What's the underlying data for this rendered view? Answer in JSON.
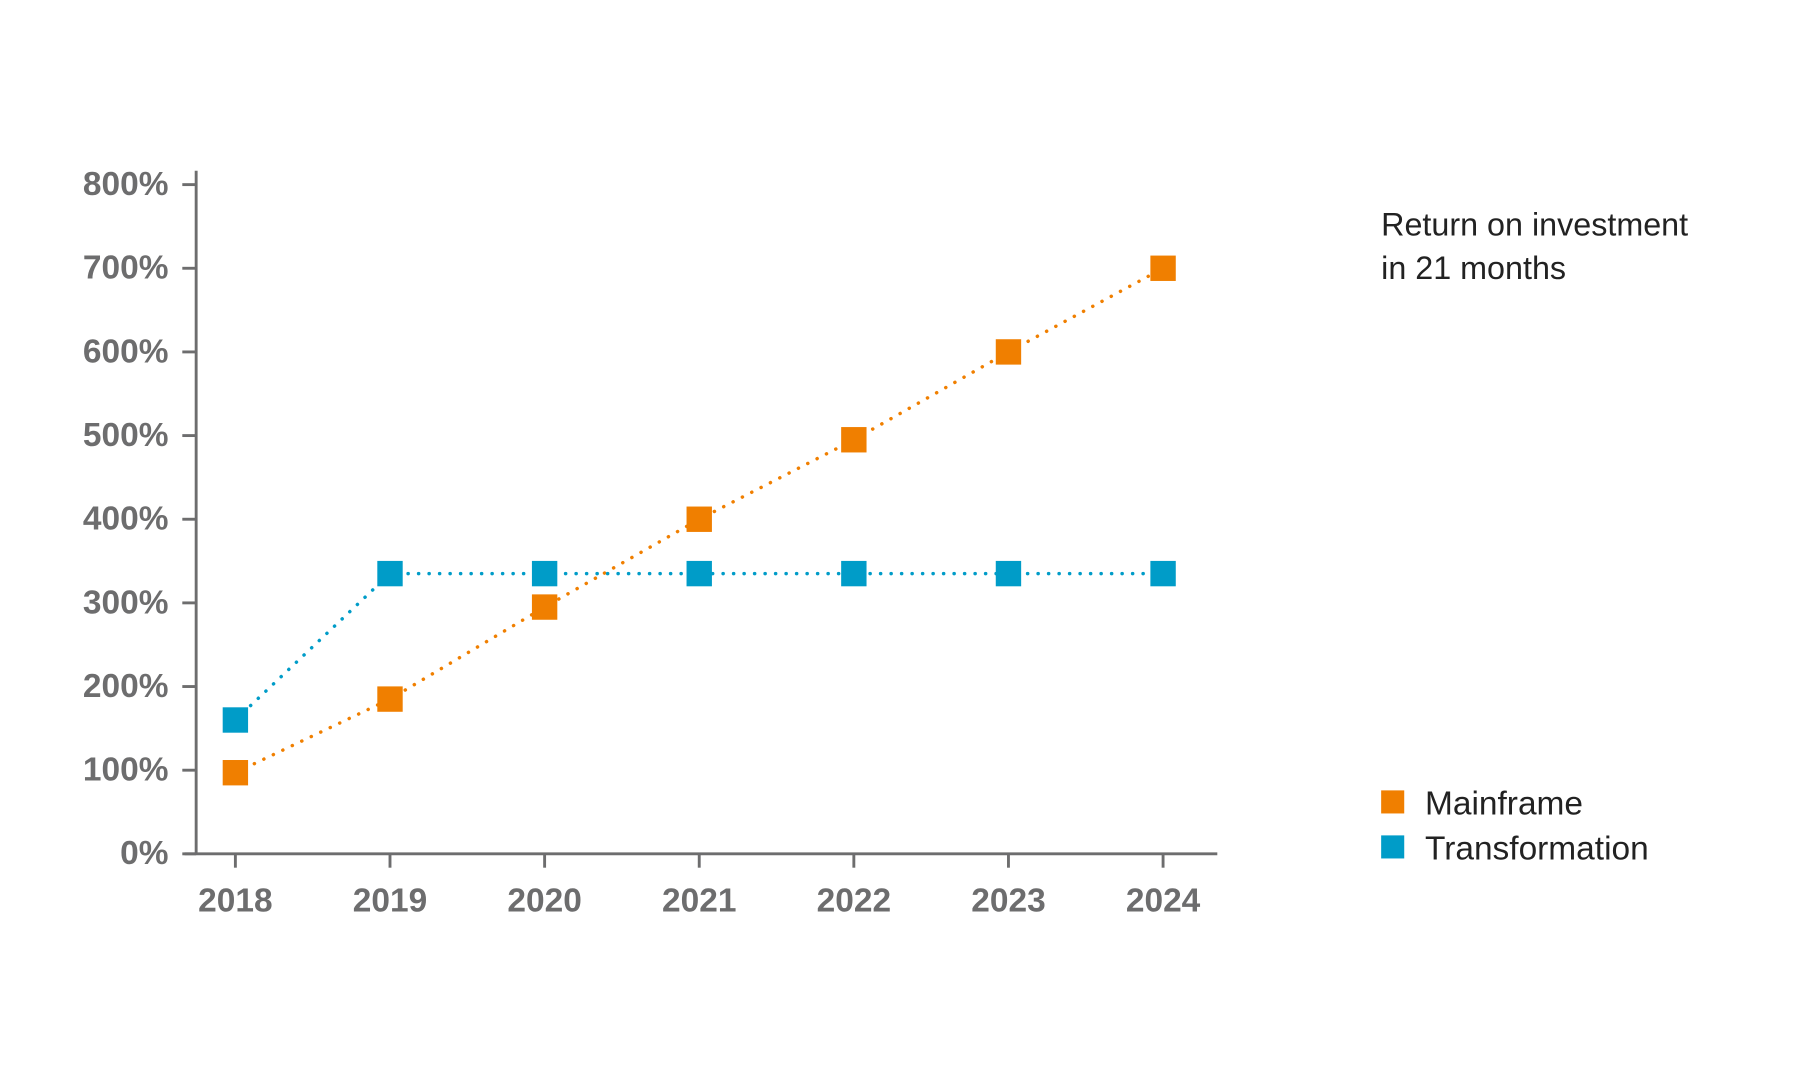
{
  "chart_data": {
    "type": "line",
    "title": "Return on investment in 21 months",
    "title_lines": [
      "Return on investment",
      "in 21 months"
    ],
    "xlabel": "",
    "ylabel": "",
    "categories": [
      "2018",
      "2019",
      "2020",
      "2021",
      "2022",
      "2023",
      "2024"
    ],
    "yticks": [
      "0%",
      "100%",
      "200%",
      "300%",
      "400%",
      "500%",
      "600%",
      "700%",
      "800%"
    ],
    "ylim": [
      0,
      800
    ],
    "y_unit": "%",
    "grid": false,
    "legend_placement": "right",
    "line_style": "dotted",
    "marker": "square",
    "series": [
      {
        "name": "Mainframe",
        "color": "#f07f00",
        "values": [
          97,
          185,
          295,
          400,
          495,
          600,
          700
        ]
      },
      {
        "name": "Transformation",
        "color": "#009cc8",
        "values": [
          160,
          335,
          335,
          335,
          335,
          335,
          335
        ]
      }
    ]
  }
}
